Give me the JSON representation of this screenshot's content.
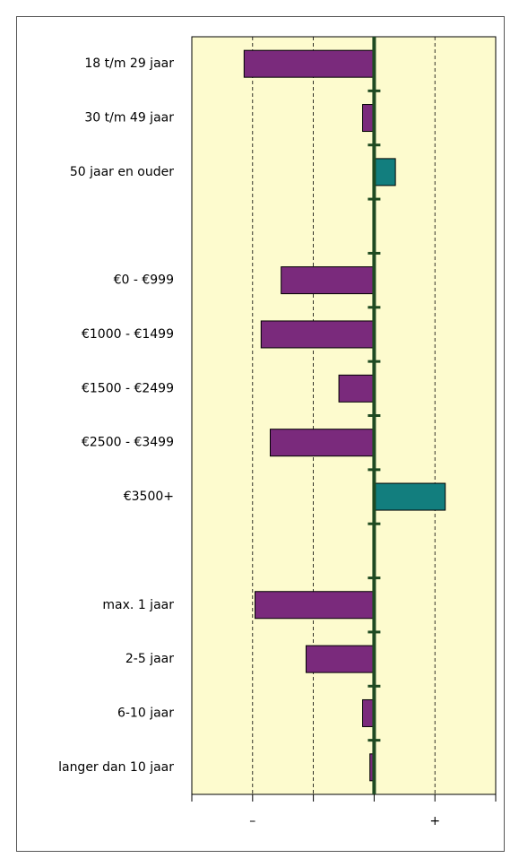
{
  "chart_data": {
    "type": "bar",
    "orientation": "horizontal",
    "categories": [
      "18 t/m 29 jaar",
      "30 t/m 49 jaar",
      "50 jaar en ouder",
      null,
      "€0 - €999",
      "€1000 - €1499",
      "€1500 - €2499",
      "€2500 - €3499",
      "€3500+",
      null,
      "max. 1 jaar",
      "2-5 jaar",
      "6-10 jaar",
      "langer dan 10 jaar"
    ],
    "values": [
      -2.14,
      -0.19,
      0.35,
      null,
      -1.53,
      -1.86,
      -0.58,
      -1.71,
      1.17,
      null,
      -1.96,
      -1.12,
      -0.19,
      -0.07
    ],
    "negative_color": "#7a2a7c",
    "positive_color": "#127e7e",
    "xlim": [
      -3,
      2
    ],
    "xticks": [
      {
        "value": -2,
        "label": "–"
      },
      {
        "value": 1,
        "label": "+"
      }
    ],
    "minor_xticks": [
      -3,
      -2,
      -1,
      0,
      1,
      2
    ],
    "grid": true
  }
}
